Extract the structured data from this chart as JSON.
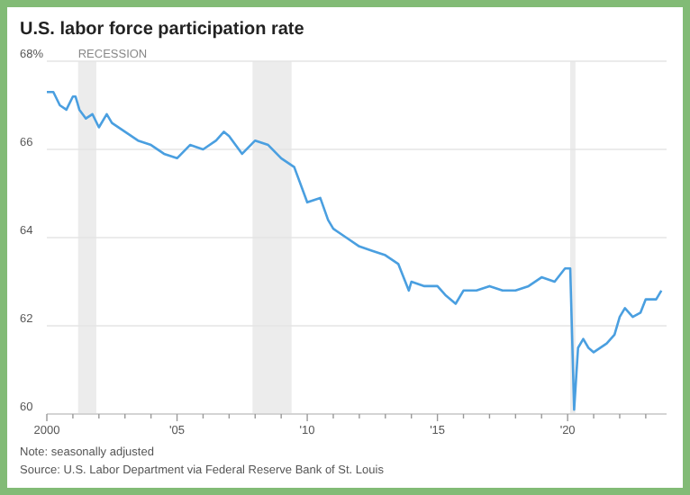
{
  "chart_data": {
    "type": "line",
    "title": "U.S. labor force participation rate",
    "annotations": [
      "Note: seasonally adjusted",
      "Source: U.S. Labor Department via Federal Reserve Bank of St. Louis"
    ],
    "xlim": [
      2000,
      2023.8
    ],
    "ylim": [
      60,
      68
    ],
    "xticks": [
      {
        "value": 2000,
        "label": "2000"
      },
      {
        "value": 2001,
        "label": null
      },
      {
        "value": 2002,
        "label": null
      },
      {
        "value": 2003,
        "label": null
      },
      {
        "value": 2004,
        "label": null
      },
      {
        "value": 2005,
        "label": "'05"
      },
      {
        "value": 2006,
        "label": null
      },
      {
        "value": 2007,
        "label": null
      },
      {
        "value": 2008,
        "label": null
      },
      {
        "value": 2009,
        "label": null
      },
      {
        "value": 2010,
        "label": "'10"
      },
      {
        "value": 2011,
        "label": null
      },
      {
        "value": 2012,
        "label": null
      },
      {
        "value": 2013,
        "label": null
      },
      {
        "value": 2014,
        "label": null
      },
      {
        "value": 2015,
        "label": "'15"
      },
      {
        "value": 2016,
        "label": null
      },
      {
        "value": 2017,
        "label": null
      },
      {
        "value": 2018,
        "label": null
      },
      {
        "value": 2019,
        "label": null
      },
      {
        "value": 2020,
        "label": "'20"
      },
      {
        "value": 2021,
        "label": null
      },
      {
        "value": 2022,
        "label": null
      },
      {
        "value": 2023,
        "label": null
      }
    ],
    "yticks": [
      60,
      62,
      64,
      66,
      {
        "value": 68,
        "label": "68%"
      }
    ],
    "grid": "y",
    "marker": "none",
    "line_style": "solid",
    "bands": [
      {
        "axis": "x",
        "from": 2001.2,
        "to": 2001.9,
        "label": "RECESSION",
        "color": "#ececec"
      },
      {
        "axis": "x",
        "from": 2007.9,
        "to": 2009.4,
        "label": null,
        "color": "#ececec"
      },
      {
        "axis": "x",
        "from": 2020.1,
        "to": 2020.3,
        "label": null,
        "color": "#ececec"
      }
    ],
    "series": [
      {
        "color": "#4a9fe0",
        "x": [
          2000.0,
          2000.25,
          2000.5,
          2000.75,
          2001.0,
          2001.1,
          2001.25,
          2001.5,
          2001.75,
          2002.0,
          2002.3,
          2002.5,
          2003.0,
          2003.5,
          2004.0,
          2004.5,
          2005.0,
          2005.5,
          2006.0,
          2006.5,
          2006.8,
          2007.0,
          2007.5,
          2008.0,
          2008.5,
          2009.0,
          2009.5,
          2010.0,
          2010.5,
          2010.8,
          2011.0,
          2011.5,
          2012.0,
          2012.5,
          2013.0,
          2013.5,
          2013.9,
          2014.0,
          2014.5,
          2015.0,
          2015.3,
          2015.7,
          2016.0,
          2016.5,
          2017.0,
          2017.5,
          2018.0,
          2018.5,
          2019.0,
          2019.5,
          2019.9,
          2020.1,
          2020.25,
          2020.4,
          2020.6,
          2020.8,
          2021.0,
          2021.5,
          2021.8,
          2022.0,
          2022.2,
          2022.5,
          2022.8,
          2023.0,
          2023.4,
          2023.6
        ],
        "values": [
          67.3,
          67.3,
          67.0,
          66.9,
          67.2,
          67.2,
          66.9,
          66.7,
          66.8,
          66.5,
          66.8,
          66.6,
          66.4,
          66.2,
          66.1,
          65.9,
          65.8,
          66.1,
          66.0,
          66.2,
          66.4,
          66.3,
          65.9,
          66.2,
          66.1,
          65.8,
          65.6,
          64.8,
          64.9,
          64.4,
          64.2,
          64.0,
          63.8,
          63.7,
          63.6,
          63.4,
          62.8,
          63.0,
          62.9,
          62.9,
          62.7,
          62.5,
          62.8,
          62.8,
          62.9,
          62.8,
          62.8,
          62.9,
          63.1,
          63.0,
          63.3,
          63.3,
          60.1,
          61.5,
          61.7,
          61.5,
          61.4,
          61.6,
          61.8,
          62.2,
          62.4,
          62.2,
          62.3,
          62.6,
          62.6,
          62.8
        ]
      }
    ]
  }
}
